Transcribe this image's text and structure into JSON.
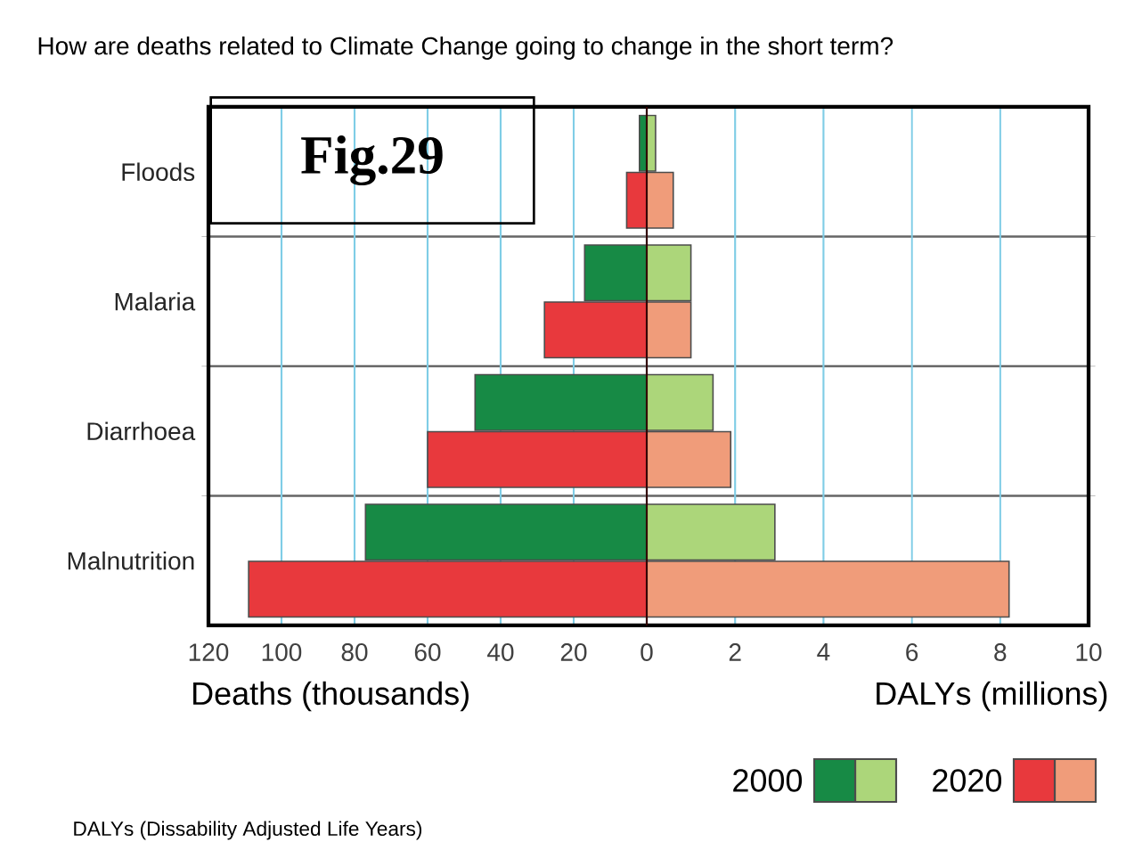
{
  "chart_data": [
    {
      "type": "bar",
      "orientation": "horizontal",
      "title": "How are deaths related to Climate Change going to change in the short term?",
      "categories": [
        "Floods",
        "Malaria",
        "Diarrhoea",
        "Malnutrition"
      ],
      "series": [
        {
          "color": "#178a45",
          "values": [
            2,
            17,
            47,
            77
          ]
        },
        {
          "color": "#e8393d",
          "values": [
            5.5,
            28,
            60,
            109
          ]
        }
      ],
      "xlim": [
        120,
        0
      ],
      "xticks": [
        120,
        100,
        80,
        60,
        40,
        20,
        0
      ],
      "xlabel": "Deaths (thousands)",
      "grid": "x",
      "annotations": [
        "Fig.29"
      ]
    },
    {
      "type": "bar",
      "orientation": "horizontal",
      "categories": [
        null,
        null,
        null,
        null
      ],
      "series": [
        {
          "name": "2000",
          "color": "#acd67a",
          "values": [
            0.2,
            1.0,
            1.5,
            2.9
          ]
        },
        {
          "name": "2020",
          "color": "#f09c7a",
          "values": [
            0.6,
            1.0,
            1.9,
            8.2
          ]
        }
      ],
      "xlim": [
        0,
        10
      ],
      "xticks": [
        {
          "value": 0,
          "label": null
        },
        2,
        4,
        6,
        8,
        10
      ],
      "xlabel": "DALYs (millions)",
      "grid": "x",
      "legend": "bottom right",
      "annotations": [
        "DALYs (Dissability Adjusted Life Years)"
      ]
    }
  ]
}
